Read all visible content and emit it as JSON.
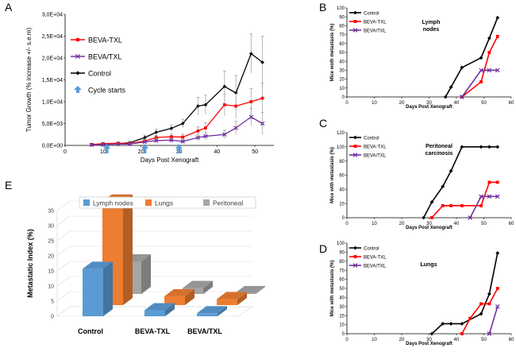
{
  "panels": {
    "A": "A",
    "B": "B",
    "C": "C",
    "D": "D",
    "E": "E"
  },
  "colors": {
    "control": "#000000",
    "beva_txl": "#ff0000",
    "beva_slash_txl": "#7030a0",
    "arrow": "#5b9bd5",
    "errbar": "#a6a6a6",
    "bar_lymph": "#5b9bd5",
    "bar_lungs": "#ed7d31",
    "bar_peritoneal": "#a5a5a5"
  },
  "chart_data": [
    {
      "panel": "A",
      "type": "line",
      "xlabel": "Days Post Xenograft",
      "ylabel": "Tumor Growth (% increase +/- s.e.m)",
      "xlim": [
        0,
        55
      ],
      "xticks": [
        "0",
        "10",
        "20",
        "30",
        "40",
        "50"
      ],
      "ylim": [
        0,
        30000
      ],
      "yticks": [
        "0,0E+00",
        "5,0E+03",
        "1,0E+04",
        "1,5E+04",
        "2,0E+04",
        "2,5E+04",
        "3,0E+04"
      ],
      "grid": false,
      "legend": [
        "BEVA-TXL",
        "BEVA/TXL",
        "Control",
        "Cycle starts"
      ],
      "legend_position": "top-left",
      "cycle_starts_x": [
        11,
        21,
        30
      ],
      "series": [
        {
          "name": "Control",
          "x": [
            7,
            10,
            14,
            17,
            21,
            24,
            28,
            31,
            35,
            37,
            42,
            45,
            49,
            52
          ],
          "y": [
            200,
            300,
            400,
            600,
            1800,
            3000,
            3900,
            5000,
            9000,
            9300,
            13500,
            12000,
            21000,
            19000
          ],
          "err": [
            300,
            300,
            300,
            300,
            500,
            700,
            800,
            1000,
            2000,
            2200,
            3500,
            4000,
            4500,
            6000
          ]
        },
        {
          "name": "BEVA-TXL",
          "x": [
            7,
            10,
            14,
            17,
            21,
            24,
            28,
            31,
            35,
            37,
            42,
            45,
            49,
            52
          ],
          "y": [
            200,
            400,
            500,
            400,
            1000,
            1800,
            2000,
            1900,
            3300,
            4000,
            9300,
            9000,
            10000,
            10800
          ],
          "err": [
            200,
            200,
            300,
            300,
            400,
            500,
            600,
            700,
            1000,
            1200,
            2500,
            2800,
            3000,
            3500
          ]
        },
        {
          "name": "BEVA/TXL",
          "x": [
            7,
            10,
            14,
            17,
            21,
            24,
            28,
            31,
            35,
            37,
            42,
            45,
            49,
            52
          ],
          "y": [
            100,
            200,
            300,
            300,
            800,
            1100,
            1200,
            900,
            1800,
            2100,
            2500,
            4000,
            6500,
            5000
          ],
          "err": [
            100,
            200,
            200,
            200,
            300,
            400,
            400,
            500,
            700,
            800,
            1000,
            1500,
            2000,
            2500
          ]
        }
      ]
    },
    {
      "panel": "B",
      "type": "line",
      "xlabel": "Days Post Xenograft",
      "ylabel": "Mice woth metastasis (%)",
      "annotation": "Lymph\nnodes",
      "xlim": [
        0,
        60
      ],
      "xticks": [
        "0",
        "10",
        "20",
        "30",
        "40",
        "50",
        "60"
      ],
      "ylim": [
        0,
        100
      ],
      "yticks": [
        "0",
        "10",
        "20",
        "30",
        "40",
        "50",
        "60",
        "70",
        "80",
        "90",
        "100"
      ],
      "legend": [
        "Control",
        "BEVA-TXL",
        "BEVA/TXL"
      ],
      "legend_position": "top-left",
      "series": [
        {
          "name": "Control",
          "x": [
            36,
            38,
            42,
            49,
            52,
            55
          ],
          "y": [
            0,
            11,
            33,
            44,
            66,
            89
          ]
        },
        {
          "name": "BEVA-TXL",
          "x": [
            42,
            49,
            52,
            55
          ],
          "y": [
            0,
            17,
            50,
            68
          ]
        },
        {
          "name": "BEVA/TXL",
          "x": [
            42,
            49,
            52,
            55
          ],
          "y": [
            0,
            30,
            30,
            30
          ]
        }
      ]
    },
    {
      "panel": "C",
      "type": "line",
      "xlabel": "Days Post Xenograft",
      "ylabel": "Mice with metastasis (%)",
      "annotation": "Peritoneal\ncarcinosis",
      "xlim": [
        0,
        60
      ],
      "xticks": [
        "0",
        "10",
        "20",
        "30",
        "40",
        "50",
        "60"
      ],
      "ylim": [
        0,
        120
      ],
      "yticks": [
        "0",
        "20",
        "40",
        "60",
        "80",
        "100",
        "120"
      ],
      "legend": [
        "Control",
        "BEVA-TXL",
        "BEVA/TXL"
      ],
      "legend_position": "top-left",
      "series": [
        {
          "name": "Control",
          "x": [
            28,
            31,
            35,
            38,
            42,
            49,
            52,
            55
          ],
          "y": [
            0,
            22,
            44,
            66,
            100,
            100,
            100,
            100
          ]
        },
        {
          "name": "BEVA-TXL",
          "x": [
            31,
            35,
            38,
            42,
            49,
            52,
            55
          ],
          "y": [
            0,
            17,
            17,
            17,
            17,
            50,
            50
          ]
        },
        {
          "name": "BEVA/TXL",
          "x": [
            45,
            49,
            52,
            55
          ],
          "y": [
            0,
            30,
            30,
            30
          ]
        }
      ]
    },
    {
      "panel": "D",
      "type": "line",
      "xlabel": "Days Post Xenograft",
      "ylabel": "Mice with metastasis (%)",
      "annotation": "Lungs",
      "xlim": [
        0,
        60
      ],
      "xticks": [
        "0",
        "10",
        "20",
        "30",
        "40",
        "50",
        "60"
      ],
      "ylim": [
        0,
        100
      ],
      "yticks": [
        "0",
        "10",
        "20",
        "30",
        "40",
        "50",
        "60",
        "70",
        "80",
        "90",
        "100"
      ],
      "legend": [
        "Control",
        "BEVA-TXL",
        "BEVA/TXL"
      ],
      "legend_position": "top-left",
      "series": [
        {
          "name": "Control",
          "x": [
            31,
            35,
            38,
            42,
            49,
            52,
            55
          ],
          "y": [
            0,
            11,
            11,
            11,
            22,
            44,
            89
          ]
        },
        {
          "name": "BEVA-TXL",
          "x": [
            42,
            45,
            49,
            52,
            55
          ],
          "y": [
            0,
            17,
            33,
            33,
            50
          ]
        },
        {
          "name": "BEVA/TXL",
          "x": [
            52,
            55
          ],
          "y": [
            0,
            30
          ]
        }
      ]
    },
    {
      "panel": "E",
      "type": "bar",
      "ylabel": "Metastatic Index (%)",
      "categories": [
        "Control",
        "BEVA-TXL",
        "BEVA/TXL"
      ],
      "ylim": [
        0,
        35
      ],
      "yticks": [
        "0",
        "5",
        "10",
        "15",
        "20",
        "25",
        "30",
        "35"
      ],
      "legend_position": "top",
      "series": [
        {
          "name": "Lymph nodes",
          "values": [
            16,
            2,
            1
          ]
        },
        {
          "name": "Lungs",
          "values": [
            35,
            3,
            2
          ]
        },
        {
          "name": "Peritoneal",
          "values": [
            11,
            2,
            0.3
          ]
        }
      ]
    }
  ]
}
